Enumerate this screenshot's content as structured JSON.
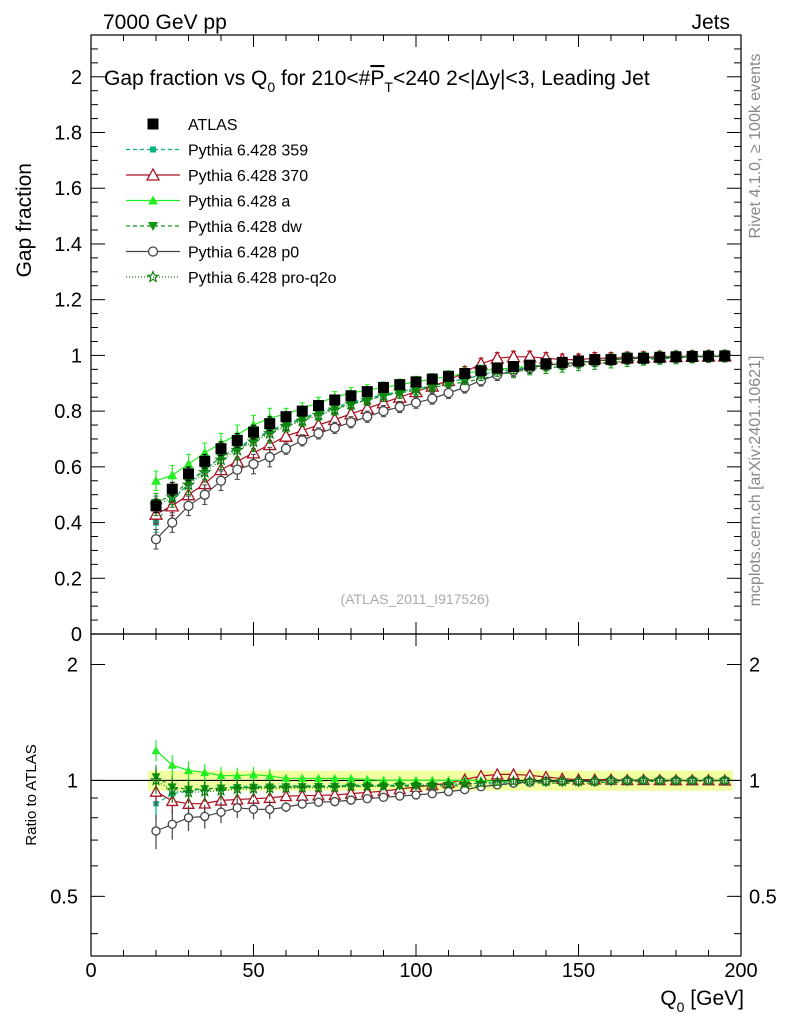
{
  "header": {
    "left": "7000 GeV pp",
    "right": "Jets"
  },
  "side_labels": {
    "rivet": "Rivet 4.1.0, ≥ 100k events",
    "mcplots": "mcplots.cern.ch [arXiv:2401.10621]"
  },
  "chart_data": {
    "type": "scatter",
    "title": "Gap fraction vs Q",
    "title_sub": "0",
    "title_mid": " for 210<#",
    "title_overlined": "P",
    "title_overlined_sub": "T",
    "title_tail": "<240  2<|Δy|<3, Leading Jet",
    "ylabel": "Gap fraction",
    "ratio_ylabel": "Ratio to ATLAS",
    "xlabel_main": "Q",
    "xlabel_sub": "0",
    "xlabel_unit": " [GeV]",
    "analysis_id": "(ATLAS_2011_I917526)",
    "xlim": [
      0,
      200
    ],
    "ylim": [
      0,
      2.15
    ],
    "ratio_ylim": [
      0.35,
      2.4
    ],
    "x_ticks": [
      "0",
      "50",
      "100",
      "150",
      "200"
    ],
    "y_ticks": [
      "0",
      "0.2",
      "0.4",
      "0.6",
      "0.8",
      "1",
      "1.2",
      "1.4",
      "1.6",
      "1.8",
      "2"
    ],
    "ratio_ticks": [
      "0.5",
      "1",
      "2"
    ],
    "x": [
      20,
      25,
      30,
      35,
      40,
      45,
      50,
      55,
      60,
      65,
      70,
      75,
      80,
      85,
      90,
      95,
      100,
      105,
      110,
      115,
      120,
      125,
      130,
      135,
      140,
      145,
      150,
      155,
      160,
      165,
      170,
      175,
      180,
      185,
      190,
      195
    ],
    "series": [
      {
        "name": "ATLAS",
        "color": "#000000",
        "marker": "square",
        "dash": "none",
        "values": [
          0.46,
          0.52,
          0.575,
          0.62,
          0.665,
          0.695,
          0.725,
          0.755,
          0.78,
          0.8,
          0.82,
          0.84,
          0.855,
          0.87,
          0.885,
          0.895,
          0.905,
          0.915,
          0.925,
          0.935,
          0.945,
          0.955,
          0.96,
          0.965,
          0.97,
          0.975,
          0.98,
          0.985,
          0.985,
          0.99,
          0.99,
          0.993,
          0.995,
          0.996,
          0.997,
          0.998
        ]
      },
      {
        "name": "Pythia 6.428 359",
        "color": "#00b386",
        "marker": "smallsquare",
        "dash": "4,3",
        "values": [
          0.4,
          0.48,
          0.54,
          0.59,
          0.635,
          0.67,
          0.7,
          0.73,
          0.755,
          0.775,
          0.795,
          0.815,
          0.83,
          0.845,
          0.86,
          0.87,
          0.88,
          0.89,
          0.905,
          0.915,
          0.93,
          0.94,
          0.95,
          0.955,
          0.965,
          0.97,
          0.975,
          0.98,
          0.985,
          0.988,
          0.99,
          0.992,
          0.994,
          0.995,
          0.996,
          0.997
        ]
      },
      {
        "name": "Pythia 6.428 370",
        "color": "#aa1122",
        "marker": "opentriangle",
        "dash": "none",
        "values": [
          0.43,
          0.46,
          0.5,
          0.54,
          0.59,
          0.62,
          0.65,
          0.68,
          0.71,
          0.73,
          0.75,
          0.77,
          0.79,
          0.81,
          0.83,
          0.85,
          0.87,
          0.89,
          0.91,
          0.94,
          0.97,
          0.99,
          0.995,
          0.995,
          0.99,
          0.985,
          0.985,
          0.99,
          0.99,
          0.992,
          0.993,
          0.995,
          0.996,
          0.997,
          0.998,
          0.998
        ]
      },
      {
        "name": "Pythia 6.428 a",
        "color": "#22ee22",
        "marker": "triangle",
        "dash": "none",
        "values": [
          0.55,
          0.57,
          0.61,
          0.65,
          0.685,
          0.715,
          0.75,
          0.775,
          0.79,
          0.81,
          0.83,
          0.85,
          0.865,
          0.875,
          0.885,
          0.895,
          0.905,
          0.915,
          0.925,
          0.935,
          0.945,
          0.95,
          0.955,
          0.96,
          0.965,
          0.97,
          0.975,
          0.98,
          0.985,
          0.99,
          0.99,
          0.993,
          0.995,
          0.996,
          0.997,
          0.998
        ]
      },
      {
        "name": "Pythia 6.428 dw",
        "color": "#119911",
        "marker": "invtriangle",
        "dash": "4,3",
        "values": [
          0.47,
          0.5,
          0.545,
          0.59,
          0.635,
          0.665,
          0.695,
          0.725,
          0.75,
          0.77,
          0.79,
          0.81,
          0.825,
          0.84,
          0.855,
          0.865,
          0.875,
          0.885,
          0.895,
          0.905,
          0.915,
          0.93,
          0.94,
          0.95,
          0.955,
          0.96,
          0.965,
          0.97,
          0.975,
          0.98,
          0.985,
          0.988,
          0.99,
          0.993,
          0.995,
          0.997
        ]
      },
      {
        "name": "Pythia 6.428 p0",
        "color": "#444444",
        "marker": "opencircle",
        "dash": "none",
        "values": [
          0.34,
          0.4,
          0.46,
          0.5,
          0.55,
          0.59,
          0.61,
          0.635,
          0.665,
          0.695,
          0.72,
          0.74,
          0.76,
          0.78,
          0.8,
          0.815,
          0.83,
          0.845,
          0.865,
          0.885,
          0.91,
          0.93,
          0.945,
          0.955,
          0.965,
          0.97,
          0.975,
          0.98,
          0.985,
          0.988,
          0.99,
          0.992,
          0.994,
          0.995,
          0.996,
          0.997
        ]
      },
      {
        "name": "Pythia 6.428 pro-q2o",
        "color": "#0a7a0a",
        "marker": "star",
        "dash": "1,2",
        "values": [
          0.46,
          0.49,
          0.535,
          0.58,
          0.625,
          0.66,
          0.69,
          0.72,
          0.745,
          0.765,
          0.785,
          0.805,
          0.825,
          0.84,
          0.855,
          0.87,
          0.88,
          0.89,
          0.905,
          0.915,
          0.93,
          0.945,
          0.955,
          0.96,
          0.965,
          0.97,
          0.975,
          0.98,
          0.985,
          0.99,
          0.99,
          0.993,
          0.995,
          0.996,
          0.997,
          0.998
        ]
      }
    ]
  }
}
